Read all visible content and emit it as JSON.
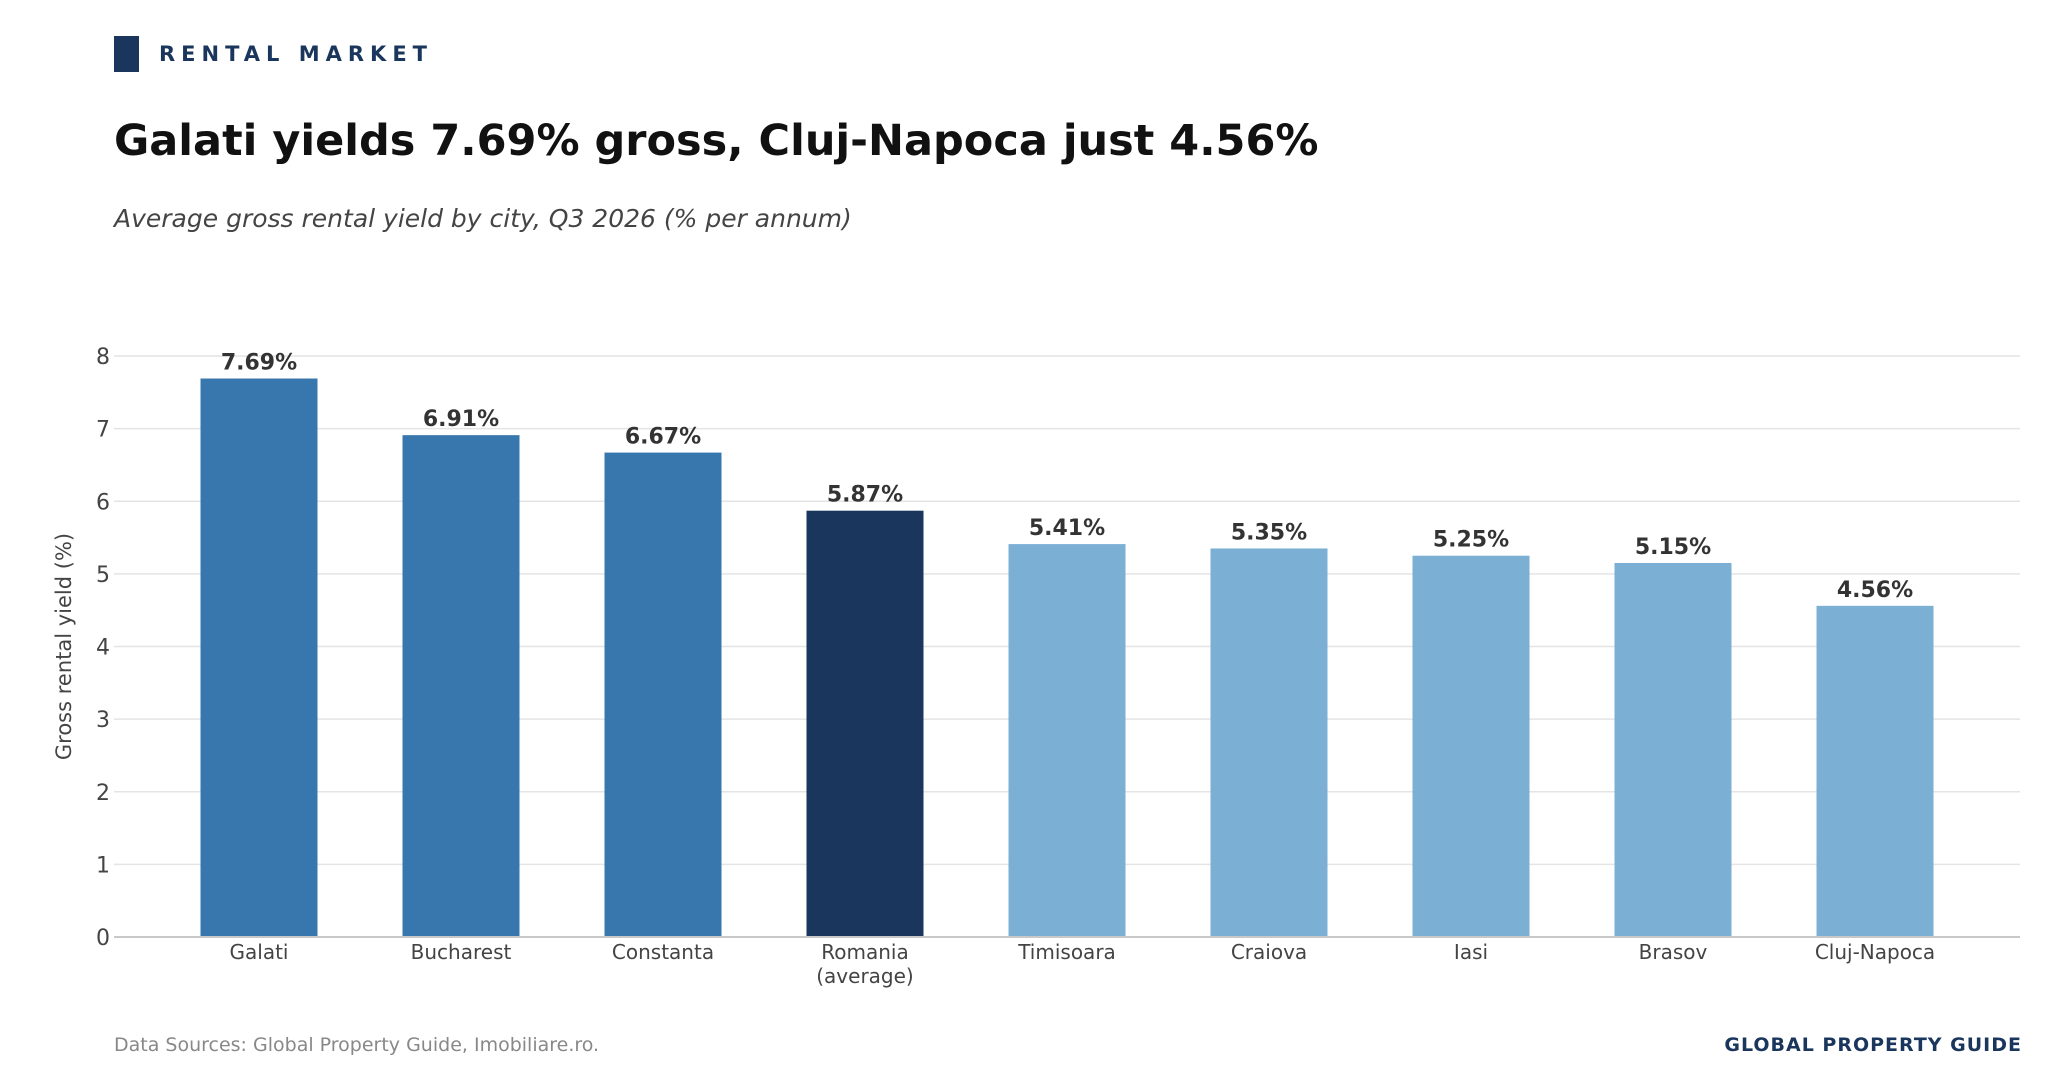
{
  "header": {
    "kicker": "RENTAL MARKET",
    "title": "Galati yields 7.69% gross, Cluj-Napoca just 4.56%",
    "subtitle": "Average gross rental yield by city, Q3 2026 (% per annum)"
  },
  "footer": {
    "source": "Data Sources: Global Property Guide, Imobiliare.ro.",
    "brand": "GLOBAL PROPERTY GUIDE"
  },
  "chart_data": {
    "type": "bar",
    "ylabel": "Gross rental yield (%)",
    "xlabel": "",
    "ylim": [
      0,
      8
    ],
    "yticks": [
      0,
      1,
      2,
      3,
      4,
      5,
      6,
      7,
      8
    ],
    "grid": true,
    "categories": [
      "Galati",
      "Bucharest",
      "Constanta",
      "Romania\n(average)",
      "Timisoara",
      "Craiova",
      "Iasi",
      "Brasov",
      "Cluj-Napoca"
    ],
    "values": [
      7.69,
      6.91,
      6.67,
      5.87,
      5.41,
      5.35,
      5.25,
      5.15,
      4.56
    ],
    "value_labels": [
      "7.69%",
      "6.91%",
      "6.67%",
      "5.87%",
      "5.41%",
      "5.35%",
      "5.25%",
      "5.15%",
      "4.56%"
    ],
    "bar_colors": [
      "#3777ae",
      "#3777ae",
      "#3777ae",
      "#1a365d",
      "#7bafd4",
      "#7bafd4",
      "#7bafd4",
      "#7bafd4",
      "#7bafd4"
    ]
  },
  "colors": {
    "accent": "#1a365d",
    "top_group": "#3777ae",
    "average": "#1a365d",
    "other": "#7bafd4"
  }
}
